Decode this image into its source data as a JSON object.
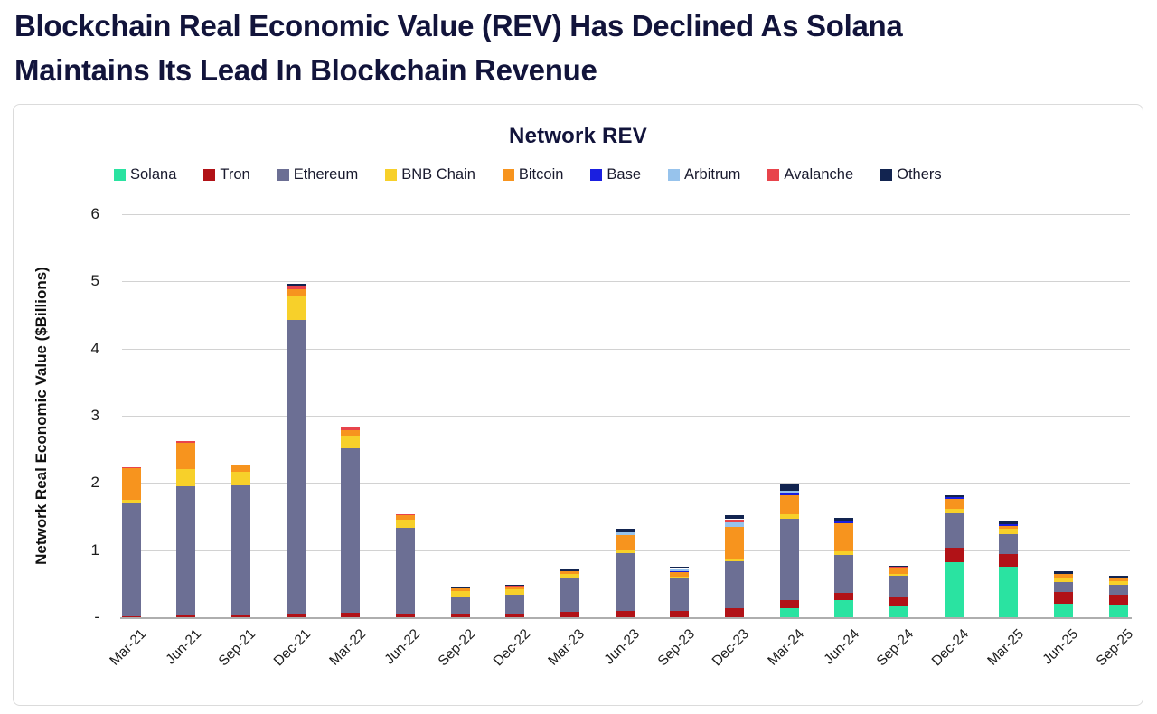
{
  "page": {
    "title_line1": "Blockchain Real Economic Value (REV) Has Declined As Solana",
    "title_line2": "Maintains Its Lead In Blockchain Revenue"
  },
  "chart_data": {
    "type": "bar",
    "stacked": true,
    "title": "Network REV",
    "xlabel": "",
    "ylabel": "Network Real Economic Value ($Billions)",
    "units": "USD billions",
    "ylim": [
      0,
      6
    ],
    "ytick_values": [
      0,
      1,
      2,
      3,
      4,
      5,
      6
    ],
    "ytick_labels": [
      "-",
      "1",
      "2",
      "3",
      "4",
      "5",
      "6"
    ],
    "grid": "horizontal-gridlines-on",
    "legend_position": "top",
    "categories": [
      "Mar-21",
      "Jun-21",
      "Sep-21",
      "Dec-21",
      "Mar-22",
      "Jun-22",
      "Sep-22",
      "Dec-22",
      "Mar-23",
      "Jun-23",
      "Sep-23",
      "Dec-23",
      "Mar-24",
      "Jun-24",
      "Sep-24",
      "Dec-24",
      "Mar-25",
      "Jun-25",
      "Sep-25"
    ],
    "series": [
      {
        "name": "Solana",
        "color": "#2AE3A1",
        "values": [
          0,
          0,
          0,
          0,
          0,
          0,
          0,
          0,
          0,
          0,
          0,
          0,
          0.13,
          0.25,
          0.17,
          0.82,
          0.76,
          0.2,
          0.19
        ]
      },
      {
        "name": "Tron",
        "color": "#B11217",
        "values": [
          0.02,
          0.03,
          0.03,
          0.06,
          0.07,
          0.06,
          0.05,
          0.06,
          0.08,
          0.09,
          0.1,
          0.13,
          0.13,
          0.11,
          0.13,
          0.21,
          0.18,
          0.18,
          0.15
        ]
      },
      {
        "name": "Ethereum",
        "color": "#6C6F94",
        "values": [
          1.68,
          1.92,
          1.94,
          4.36,
          2.44,
          1.27,
          0.26,
          0.27,
          0.5,
          0.87,
          0.48,
          0.7,
          1.21,
          0.57,
          0.32,
          0.52,
          0.3,
          0.15,
          0.15
        ]
      },
      {
        "name": "BNB Chain",
        "color": "#F7D02A",
        "values": [
          0.05,
          0.25,
          0.19,
          0.35,
          0.2,
          0.12,
          0.08,
          0.09,
          0.07,
          0.05,
          0.03,
          0.04,
          0.06,
          0.05,
          0.03,
          0.07,
          0.08,
          0.06,
          0.05
        ]
      },
      {
        "name": "Bitcoin",
        "color": "#F7941E",
        "values": [
          0.47,
          0.4,
          0.1,
          0.12,
          0.08,
          0.07,
          0.04,
          0.03,
          0.04,
          0.21,
          0.06,
          0.48,
          0.28,
          0.42,
          0.07,
          0.14,
          0.04,
          0.05,
          0.05
        ]
      },
      {
        "name": "Base",
        "color": "#1A1FE0",
        "values": [
          0,
          0,
          0,
          0,
          0,
          0,
          0,
          0,
          0,
          0,
          0.02,
          0,
          0.05,
          0.03,
          0.02,
          0.03,
          0.03,
          0,
          0
        ]
      },
      {
        "name": "Arbitrum",
        "color": "#97C3EC",
        "values": [
          0,
          0,
          0,
          0,
          0,
          0,
          0,
          0,
          0,
          0.04,
          0.03,
          0.06,
          0.03,
          0,
          0,
          0,
          0,
          0,
          0
        ]
      },
      {
        "name": "Avalanche",
        "color": "#E8444B",
        "values": [
          0.01,
          0.02,
          0.01,
          0.05,
          0.04,
          0.02,
          0,
          0.02,
          0,
          0,
          0,
          0.05,
          0,
          0,
          0.01,
          0,
          0,
          0,
          0
        ]
      },
      {
        "name": "Others",
        "color": "#122450",
        "values": [
          0,
          0,
          0,
          0.02,
          0,
          0,
          0.01,
          0.01,
          0.03,
          0.06,
          0.04,
          0.06,
          0.1,
          0.05,
          0.02,
          0.03,
          0.03,
          0.04,
          0.03
        ]
      }
    ]
  }
}
